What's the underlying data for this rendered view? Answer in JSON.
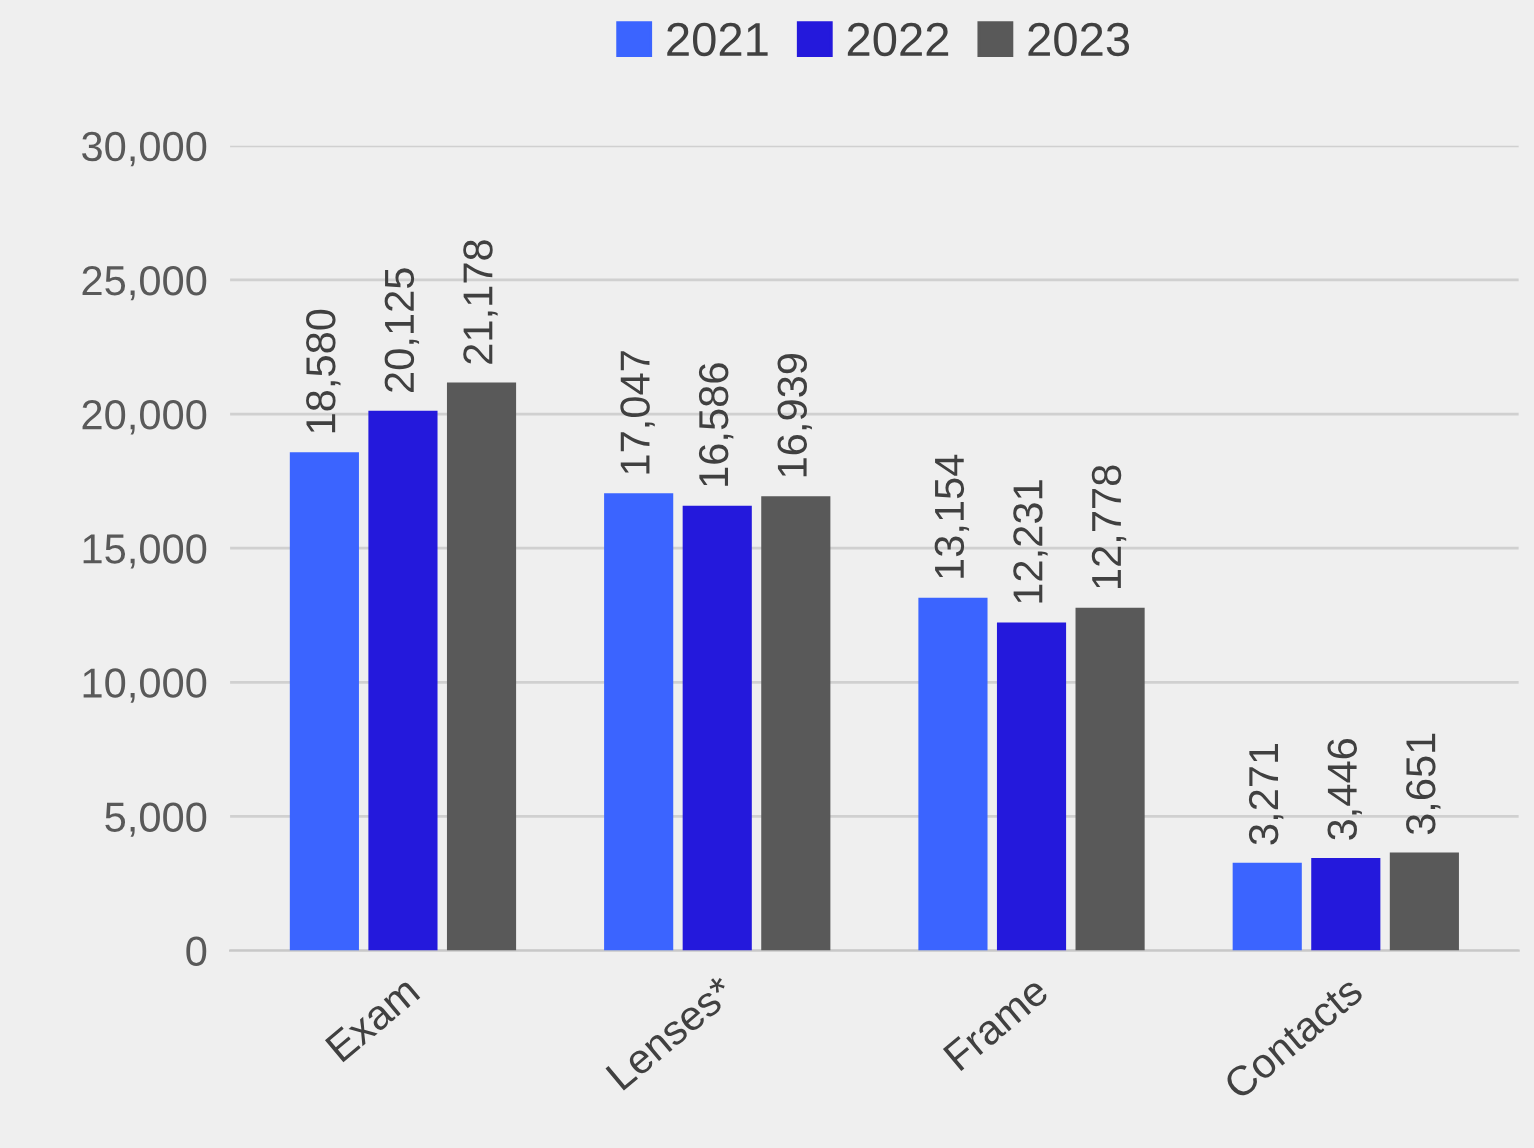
{
  "chart_data": {
    "type": "bar",
    "categories": [
      "Exam",
      "Lenses*",
      "Frame",
      "Contacts"
    ],
    "series": [
      {
        "name": "2021",
        "color": "#3b64ff",
        "values": [
          18580,
          17047,
          13154,
          3271
        ],
        "value_labels": [
          "18,580",
          "17,047",
          "13,154",
          "3,271"
        ]
      },
      {
        "name": "2022",
        "color": "#2419dc",
        "values": [
          20125,
          16586,
          12231,
          3446
        ],
        "value_labels": [
          "20,125",
          "16,586",
          "12,231",
          "3,446"
        ]
      },
      {
        "name": "2023",
        "color": "#595959",
        "values": [
          21178,
          16939,
          12778,
          3651
        ],
        "value_labels": [
          "21,178",
          "16,939",
          "12,778",
          "3,651"
        ]
      }
    ],
    "ylim": [
      0,
      30000
    ],
    "yticks": [
      {
        "value": 0,
        "label": "0"
      },
      {
        "value": 5000,
        "label": "5,000"
      },
      {
        "value": 10000,
        "label": "10,000"
      },
      {
        "value": 15000,
        "label": "15,000"
      },
      {
        "value": 20000,
        "label": "20,000"
      },
      {
        "value": 25000,
        "label": "25,000"
      },
      {
        "value": 30000,
        "label": "30,000"
      }
    ],
    "grid": "y",
    "legend": "top"
  }
}
